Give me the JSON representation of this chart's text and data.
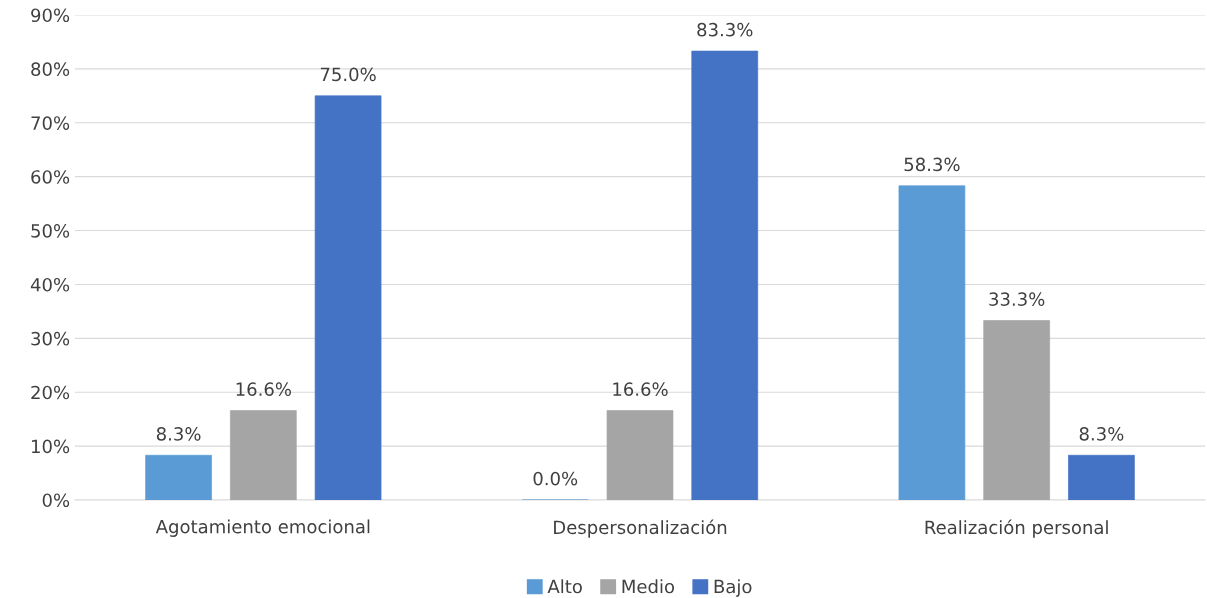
{
  "chart_data": {
    "type": "bar",
    "categories": [
      "Agotamiento emocional",
      "Despersonalización",
      "Realización personal"
    ],
    "series": [
      {
        "name": "Alto",
        "color": "#5b9bd5",
        "values": [
          8.3,
          0.0,
          58.3
        ],
        "value_labels": [
          "8.3%",
          "0.0%",
          "58.3%"
        ]
      },
      {
        "name": "Medio",
        "color": "#a5a5a5",
        "values": [
          16.6,
          16.6,
          33.3
        ],
        "value_labels": [
          "16.6%",
          "16.6%",
          "33.3%"
        ]
      },
      {
        "name": "Bajo",
        "color": "#4472c4",
        "values": [
          75.0,
          83.3,
          8.3
        ],
        "value_labels": [
          "75.0%",
          "83.3%",
          "8.3%"
        ]
      }
    ],
    "ylim": [
      0,
      90
    ],
    "yticks": [
      {
        "value": 0,
        "label": "0%"
      },
      {
        "value": 10,
        "label": "10%"
      },
      {
        "value": 20,
        "label": "20%"
      },
      {
        "value": 30,
        "label": "30%"
      },
      {
        "value": 40,
        "label": "40%"
      },
      {
        "value": 50,
        "label": "50%"
      },
      {
        "value": 60,
        "label": "60%"
      },
      {
        "value": 70,
        "label": "70%"
      },
      {
        "value": 80,
        "label": "80%"
      },
      {
        "value": 90,
        "label": "90%"
      }
    ],
    "grid": "y",
    "legend": "bottom"
  }
}
